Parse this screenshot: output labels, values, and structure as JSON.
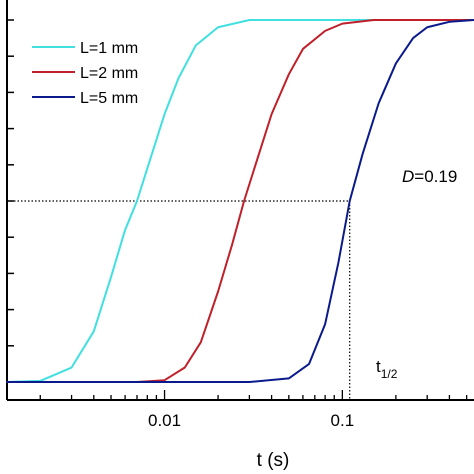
{
  "chart_data": {
    "type": "line",
    "title": "",
    "xlabel": "t (s)",
    "ylabel": "",
    "xscale": "log",
    "xlim": [
      0.0013,
      0.55
    ],
    "ylim": [
      0,
      1
    ],
    "grid": false,
    "legend_position": "top-left",
    "x_ticks": [
      {
        "value": 0.01,
        "label": "0.01"
      },
      {
        "value": 0.1,
        "label": "0.1"
      }
    ],
    "series": [
      {
        "name": "L=1 mm",
        "color": "#40e0e0",
        "x": [
          0.0013,
          0.002,
          0.003,
          0.004,
          0.005,
          0.006,
          0.007,
          0.008,
          0.01,
          0.012,
          0.015,
          0.02,
          0.03,
          0.05,
          0.1,
          0.55
        ],
        "y": [
          0.0,
          0.003,
          0.04,
          0.14,
          0.29,
          0.42,
          0.5,
          0.59,
          0.74,
          0.84,
          0.93,
          0.98,
          1.0,
          1.0,
          1.0,
          1.0
        ]
      },
      {
        "name": "L=2 mm",
        "color": "#c0202a",
        "x": [
          0.0013,
          0.007,
          0.01,
          0.013,
          0.016,
          0.02,
          0.024,
          0.028,
          0.032,
          0.04,
          0.05,
          0.06,
          0.08,
          0.1,
          0.15,
          0.55
        ],
        "y": [
          0.0,
          0.0,
          0.005,
          0.04,
          0.11,
          0.25,
          0.38,
          0.5,
          0.59,
          0.74,
          0.85,
          0.92,
          0.97,
          0.99,
          1.0,
          1.0
        ]
      },
      {
        "name": "L=5 mm",
        "color": "#0a1a8c",
        "x": [
          0.0013,
          0.03,
          0.05,
          0.065,
          0.08,
          0.095,
          0.11,
          0.13,
          0.16,
          0.2,
          0.25,
          0.3,
          0.4,
          0.55
        ],
        "y": [
          0.0,
          0.0,
          0.01,
          0.05,
          0.16,
          0.33,
          0.5,
          0.63,
          0.77,
          0.88,
          0.95,
          0.98,
          0.995,
          1.0
        ]
      }
    ],
    "reference": {
      "y_half": 0.5,
      "t_half": 0.11,
      "label_base": "t",
      "label_sub": "1/2"
    },
    "annotation": {
      "symbol": "D",
      "value_text": "=0.19"
    },
    "y_minor_ticks": [
      0.1,
      0.2,
      0.3,
      0.4,
      0.5,
      0.6,
      0.7,
      0.8,
      0.9,
      1.0
    ]
  }
}
